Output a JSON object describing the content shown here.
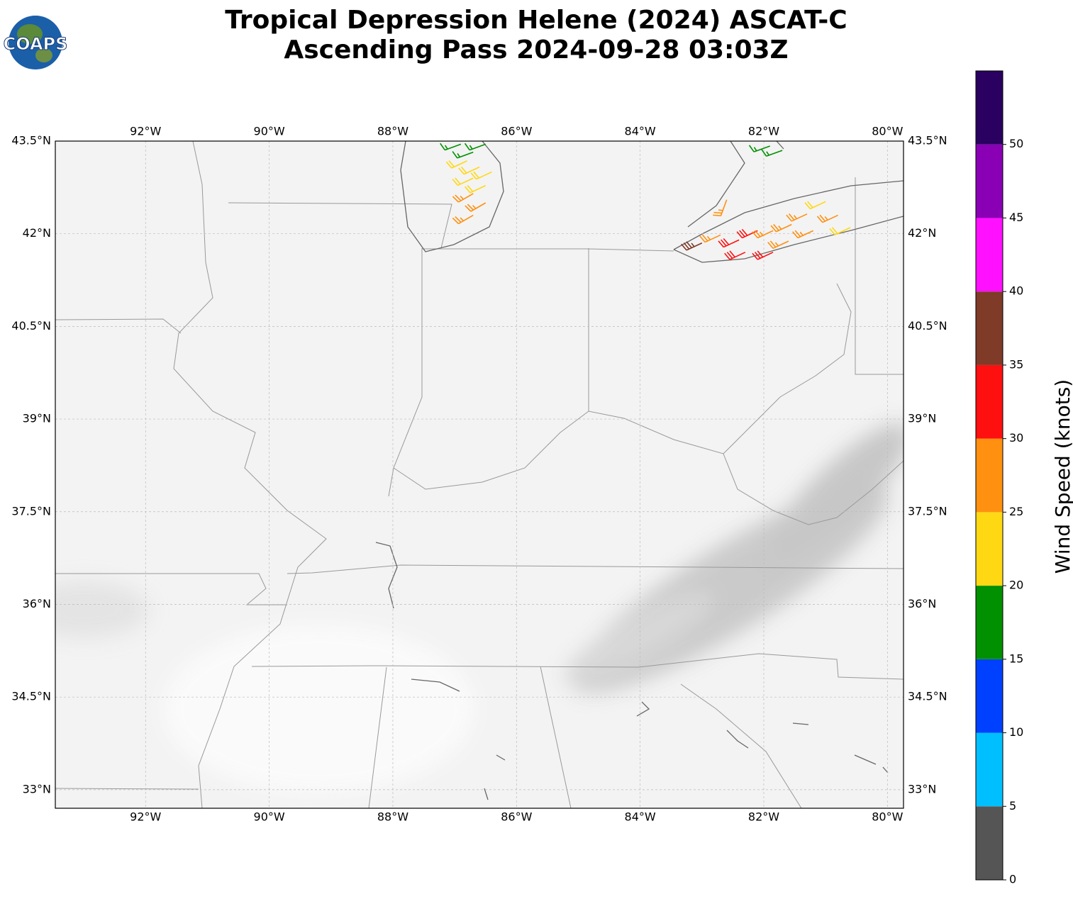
{
  "map_data": {
    "type": "wind-barb-map",
    "title": [
      "Tropical Depression Helene (2024) ASCAT-C",
      "Ascending Pass 2024-09-28 03:03Z"
    ],
    "logo": "COAPS",
    "lonlim": [
      -93.46,
      -79.74
    ],
    "latlim": [
      32.7,
      43.5
    ],
    "lonticks": [
      {
        "value": -92,
        "label": "92°W"
      },
      {
        "value": -90,
        "label": "90°W"
      },
      {
        "value": -88,
        "label": "88°W"
      },
      {
        "value": -86,
        "label": "86°W"
      },
      {
        "value": -84,
        "label": "84°W"
      },
      {
        "value": -82,
        "label": "82°W"
      },
      {
        "value": -80,
        "label": "80°W"
      }
    ],
    "latticks": [
      {
        "value": 43.5,
        "label": "43.5°N"
      },
      {
        "value": 42,
        "label": "42°N"
      },
      {
        "value": 40.5,
        "label": "40.5°N"
      },
      {
        "value": 39,
        "label": "39°N"
      },
      {
        "value": 37.5,
        "label": "37.5°N"
      },
      {
        "value": 36,
        "label": "36°N"
      },
      {
        "value": 34.5,
        "label": "34.5°N"
      },
      {
        "value": 33,
        "label": "33°N"
      }
    ],
    "grid": true,
    "colorbar": {
      "label": "Wind Speed (knots)",
      "bounds": [
        0,
        5,
        10,
        15,
        20,
        25,
        30,
        35,
        40,
        45,
        50,
        55
      ],
      "colors": [
        "#555555",
        "#00bfff",
        "#0040ff",
        "#009000",
        "#ffd814",
        "#ff9010",
        "#ff1010",
        "#7f3a28",
        "#ff10ff",
        "#8a00b4",
        "#2a0060"
      ],
      "ticks": [
        0,
        5,
        10,
        15,
        20,
        25,
        30,
        35,
        40,
        45,
        50
      ]
    },
    "barbs": [
      {
        "lon": -86.9,
        "lat": 43.45,
        "speed": 17,
        "dir": 250
      },
      {
        "lon": -86.7,
        "lat": 43.32,
        "speed": 17,
        "dir": 250
      },
      {
        "lon": -86.5,
        "lat": 43.45,
        "speed": 17,
        "dir": 250
      },
      {
        "lon": -86.8,
        "lat": 43.18,
        "speed": 22,
        "dir": 245
      },
      {
        "lon": -86.6,
        "lat": 43.08,
        "speed": 22,
        "dir": 245
      },
      {
        "lon": -86.4,
        "lat": 43.0,
        "speed": 22,
        "dir": 245
      },
      {
        "lon": -86.7,
        "lat": 42.9,
        "speed": 22,
        "dir": 245
      },
      {
        "lon": -86.5,
        "lat": 42.78,
        "speed": 22,
        "dir": 245
      },
      {
        "lon": -86.7,
        "lat": 42.65,
        "speed": 27,
        "dir": 240
      },
      {
        "lon": -86.5,
        "lat": 42.5,
        "speed": 27,
        "dir": 240
      },
      {
        "lon": -86.7,
        "lat": 42.3,
        "speed": 27,
        "dir": 240
      },
      {
        "lon": -81.9,
        "lat": 43.42,
        "speed": 17,
        "dir": 250
      },
      {
        "lon": -81.7,
        "lat": 43.35,
        "speed": 17,
        "dir": 250
      },
      {
        "lon": -82.6,
        "lat": 42.55,
        "speed": 27,
        "dir": 200
      },
      {
        "lon": -83.0,
        "lat": 41.85,
        "speed": 37,
        "dir": 245
      },
      {
        "lon": -82.7,
        "lat": 41.98,
        "speed": 27,
        "dir": 245
      },
      {
        "lon": -82.4,
        "lat": 41.9,
        "speed": 32,
        "dir": 245
      },
      {
        "lon": -82.1,
        "lat": 42.05,
        "speed": 32,
        "dir": 245
      },
      {
        "lon": -82.3,
        "lat": 41.7,
        "speed": 32,
        "dir": 245
      },
      {
        "lon": -81.85,
        "lat": 41.7,
        "speed": 32,
        "dir": 245
      },
      {
        "lon": -81.85,
        "lat": 42.05,
        "speed": 27,
        "dir": 245
      },
      {
        "lon": -81.55,
        "lat": 42.15,
        "speed": 27,
        "dir": 245
      },
      {
        "lon": -81.3,
        "lat": 42.32,
        "speed": 27,
        "dir": 245
      },
      {
        "lon": -81.0,
        "lat": 42.52,
        "speed": 22,
        "dir": 245
      },
      {
        "lon": -80.8,
        "lat": 42.3,
        "speed": 27,
        "dir": 245
      },
      {
        "lon": -80.6,
        "lat": 42.1,
        "speed": 22,
        "dir": 245
      },
      {
        "lon": -81.2,
        "lat": 42.05,
        "speed": 27,
        "dir": 245
      },
      {
        "lon": -81.6,
        "lat": 41.88,
        "speed": 27,
        "dir": 245
      }
    ]
  }
}
